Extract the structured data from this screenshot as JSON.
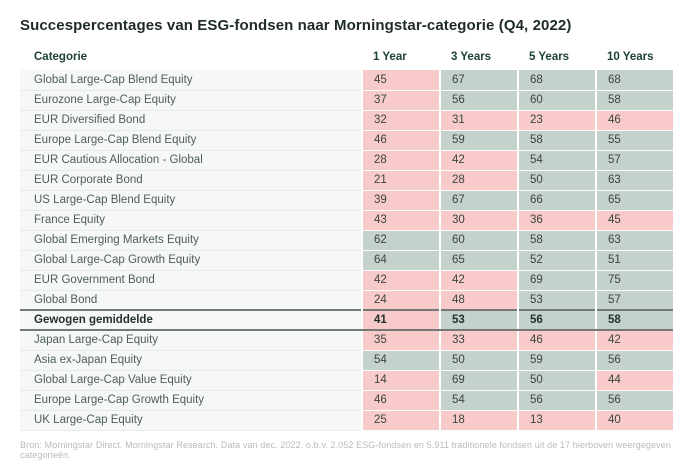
{
  "title": "Succespercentages van ESG-fondsen naar Morningstar-categorie (Q4, 2022)",
  "chart_data": {
    "type": "table",
    "title": "Succespercentages van ESG-fondsen naar Morningstar-categorie (Q4, 2022)",
    "columns": [
      "Categorie",
      "1 Year",
      "3 Years",
      "5 Years",
      "10 Years"
    ],
    "highlight_rule": "values below 50 shaded red, 50 and above shaded green",
    "threshold": 50,
    "rows": [
      {
        "category": "Global Large-Cap Blend Equity",
        "values": [
          45,
          67,
          68,
          68
        ],
        "emphasis": false
      },
      {
        "category": "Eurozone Large-Cap Equity",
        "values": [
          37,
          56,
          60,
          58
        ],
        "emphasis": false
      },
      {
        "category": "EUR Diversified Bond",
        "values": [
          32,
          31,
          23,
          46
        ],
        "emphasis": false
      },
      {
        "category": "Europe Large-Cap Blend Equity",
        "values": [
          46,
          59,
          58,
          55
        ],
        "emphasis": false
      },
      {
        "category": "EUR Cautious Allocation - Global",
        "values": [
          28,
          42,
          54,
          57
        ],
        "emphasis": false
      },
      {
        "category": "EUR Corporate Bond",
        "values": [
          21,
          28,
          50,
          63
        ],
        "emphasis": false
      },
      {
        "category": "US Large-Cap Blend Equity",
        "values": [
          39,
          67,
          66,
          65
        ],
        "emphasis": false
      },
      {
        "category": "France Equity",
        "values": [
          43,
          30,
          36,
          45
        ],
        "emphasis": false
      },
      {
        "category": "Global Emerging Markets Equity",
        "values": [
          62,
          60,
          58,
          63
        ],
        "emphasis": false
      },
      {
        "category": "Global Large-Cap Growth Equity",
        "values": [
          64,
          65,
          52,
          51
        ],
        "emphasis": false
      },
      {
        "category": "EUR Government Bond",
        "values": [
          42,
          42,
          69,
          75
        ],
        "emphasis": false
      },
      {
        "category": "Global Bond",
        "values": [
          24,
          48,
          53,
          57
        ],
        "emphasis": false
      },
      {
        "category": "Gewogen gemiddelde",
        "values": [
          41,
          53,
          56,
          58
        ],
        "emphasis": true
      },
      {
        "category": "Japan Large-Cap Equity",
        "values": [
          35,
          33,
          46,
          42
        ],
        "emphasis": false
      },
      {
        "category": "Asia ex-Japan Equity",
        "values": [
          54,
          50,
          59,
          56
        ],
        "emphasis": false
      },
      {
        "category": "Global Large-Cap Value Equity",
        "values": [
          14,
          69,
          50,
          44
        ],
        "emphasis": false
      },
      {
        "category": "Europe Large-Cap Growth Equity",
        "values": [
          46,
          54,
          56,
          56
        ],
        "emphasis": false
      },
      {
        "category": "UK Large-Cap Equity",
        "values": [
          25,
          18,
          13,
          40
        ],
        "emphasis": false
      }
    ],
    "source_note": "Bron: Morningstar Direct. Morningstar Research. Data van dec. 2022. o.b.v. 2.052 ESG-fondsen en 5.911 traditionele fondsen uit de 17 hierboven weergegeven categorieën."
  },
  "colors": {
    "negative_cell": "#f8cbca",
    "positive_cell": "#c5d1cb",
    "header_text": "#1d4233",
    "category_row_bg": "#f6f8f7",
    "title_text": "#1e2c26",
    "source_text": "#b6bdba"
  }
}
